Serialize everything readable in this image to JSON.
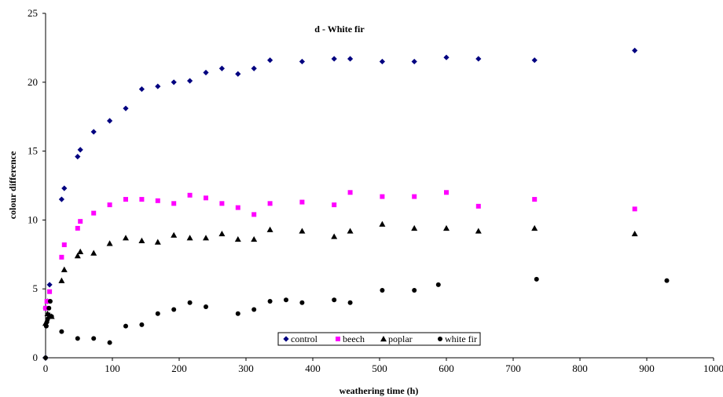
{
  "chart_data": {
    "type": "scatter",
    "title": "d - White fir",
    "xlabel": "weathering time (h)",
    "ylabel": "colour difference",
    "xlim": [
      0,
      1000
    ],
    "ylim": [
      0,
      25
    ],
    "x_ticks": [
      "0",
      "100",
      "200",
      "300",
      "400",
      "500",
      "600",
      "700",
      "800",
      "900",
      "1000"
    ],
    "y_ticks": [
      "0",
      "5",
      "10",
      "15",
      "20",
      "25"
    ],
    "grid": false,
    "legend_position": "bottom-center",
    "series": [
      {
        "name": "control",
        "marker": "diamond",
        "color": "#000080",
        "points": [
          [
            0,
            0
          ],
          [
            0,
            3.6
          ],
          [
            3,
            4.1
          ],
          [
            6,
            5.3
          ],
          [
            24,
            11.5
          ],
          [
            28,
            12.3
          ],
          [
            48,
            14.6
          ],
          [
            52,
            15.1
          ],
          [
            72,
            16.4
          ],
          [
            96,
            17.2
          ],
          [
            120,
            18.1
          ],
          [
            144,
            19.5
          ],
          [
            168,
            19.7
          ],
          [
            192,
            20
          ],
          [
            216,
            20.1
          ],
          [
            240,
            20.7
          ],
          [
            264,
            21
          ],
          [
            288,
            20.6
          ],
          [
            312,
            21
          ],
          [
            336,
            21.6
          ],
          [
            384,
            21.5
          ],
          [
            432,
            21.7
          ],
          [
            456,
            21.7
          ],
          [
            504,
            21.5
          ],
          [
            552,
            21.5
          ],
          [
            600,
            21.8
          ],
          [
            648,
            21.7
          ],
          [
            732,
            21.6
          ],
          [
            882,
            22.3
          ]
        ]
      },
      {
        "name": "beech",
        "marker": "square",
        "color": "#ff00ff",
        "points": [
          [
            0,
            3.6
          ],
          [
            2,
            4.1
          ],
          [
            6,
            4.8
          ],
          [
            24,
            7.3
          ],
          [
            28,
            8.2
          ],
          [
            48,
            9.4
          ],
          [
            52,
            9.9
          ],
          [
            72,
            10.5
          ],
          [
            96,
            11.1
          ],
          [
            120,
            11.5
          ],
          [
            144,
            11.5
          ],
          [
            168,
            11.4
          ],
          [
            192,
            11.2
          ],
          [
            216,
            11.8
          ],
          [
            240,
            11.6
          ],
          [
            264,
            11.2
          ],
          [
            288,
            10.9
          ],
          [
            312,
            10.4
          ],
          [
            336,
            11.2
          ],
          [
            384,
            11.3
          ],
          [
            432,
            11.1
          ],
          [
            456,
            12
          ],
          [
            504,
            11.7
          ],
          [
            552,
            11.7
          ],
          [
            600,
            12
          ],
          [
            648,
            11
          ],
          [
            732,
            11.5
          ],
          [
            882,
            10.8
          ]
        ]
      },
      {
        "name": "poplar",
        "marker": "triangle",
        "color": "#000000",
        "points": [
          [
            0,
            2.5
          ],
          [
            3,
            3.2
          ],
          [
            6,
            3.1
          ],
          [
            9,
            3
          ],
          [
            24,
            5.6
          ],
          [
            28,
            6.4
          ],
          [
            48,
            7.4
          ],
          [
            52,
            7.7
          ],
          [
            72,
            7.6
          ],
          [
            96,
            8.3
          ],
          [
            120,
            8.7
          ],
          [
            144,
            8.5
          ],
          [
            168,
            8.4
          ],
          [
            192,
            8.9
          ],
          [
            216,
            8.7
          ],
          [
            240,
            8.7
          ],
          [
            264,
            9
          ],
          [
            288,
            8.6
          ],
          [
            312,
            8.6
          ],
          [
            336,
            9.3
          ],
          [
            384,
            9.2
          ],
          [
            432,
            8.8
          ],
          [
            456,
            9.2
          ],
          [
            504,
            9.7
          ],
          [
            552,
            9.4
          ],
          [
            600,
            9.4
          ],
          [
            648,
            9.2
          ],
          [
            732,
            9.4
          ],
          [
            882,
            9
          ]
        ]
      },
      {
        "name": "white fir",
        "marker": "circle",
        "color": "#000000",
        "points": [
          [
            0,
            0
          ],
          [
            1,
            2.3
          ],
          [
            2,
            2.6
          ],
          [
            3,
            2.8
          ],
          [
            5,
            3.6
          ],
          [
            7,
            4.1
          ],
          [
            9,
            3
          ],
          [
            24,
            1.9
          ],
          [
            48,
            1.4
          ],
          [
            72,
            1.4
          ],
          [
            96,
            1.1
          ],
          [
            120,
            2.3
          ],
          [
            144,
            2.4
          ],
          [
            168,
            3.2
          ],
          [
            192,
            3.5
          ],
          [
            216,
            4
          ],
          [
            240,
            3.7
          ],
          [
            288,
            3.2
          ],
          [
            312,
            3.5
          ],
          [
            336,
            4.1
          ],
          [
            360,
            4.2
          ],
          [
            384,
            4
          ],
          [
            432,
            4.2
          ],
          [
            456,
            4
          ],
          [
            504,
            4.9
          ],
          [
            552,
            4.9
          ],
          [
            588,
            5.3
          ],
          [
            735,
            5.7
          ],
          [
            930,
            5.6
          ]
        ]
      }
    ]
  }
}
